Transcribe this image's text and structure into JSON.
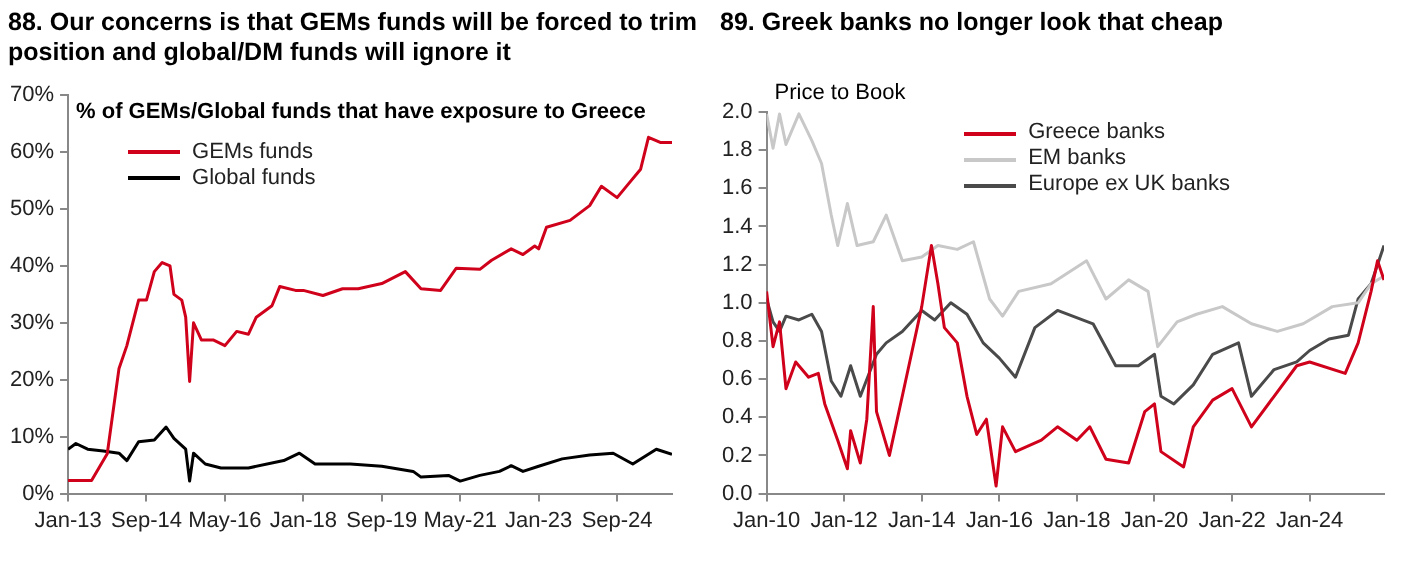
{
  "chart_data": [
    {
      "type": "line",
      "title": "88.  Our concerns is that GEMs funds will be forced to trim position and global/DM funds will ignore it",
      "subtitle": "% of GEMs/Global funds that have exposure to Greece",
      "legend": "top left",
      "grid": false,
      "marker": "none",
      "line_style": "solid",
      "xlim": [
        "2013-01",
        "2025-11"
      ],
      "xticks": [
        {
          "value": "2013-01",
          "label": "Jan-13"
        },
        {
          "value": "2014-09",
          "label": "Sep-14"
        },
        {
          "value": "2016-05",
          "label": "May-16"
        },
        {
          "value": "2018-01",
          "label": "Jan-18"
        },
        {
          "value": "2019-09",
          "label": "Sep-19"
        },
        {
          "value": "2021-05",
          "label": "May-21"
        },
        {
          "value": "2023-01",
          "label": "Jan-23"
        },
        {
          "value": "2024-09",
          "label": "Sep-24"
        }
      ],
      "ylim": [
        0,
        70
      ],
      "yticks": [
        {
          "value": 0,
          "label": "0%"
        },
        {
          "value": 10,
          "label": "10%"
        },
        {
          "value": 20,
          "label": "20%"
        },
        {
          "value": 30,
          "label": "30%"
        },
        {
          "value": 40,
          "label": "40%"
        },
        {
          "value": 50,
          "label": "50%"
        },
        {
          "value": 60,
          "label": "60%"
        },
        {
          "value": 70,
          "label": "70%"
        }
      ],
      "series": [
        {
          "name": "GEMs funds",
          "color": "#d0021b",
          "x": [
            "2013-01",
            "2013-07",
            "2013-11",
            "2014-02",
            "2014-04",
            "2014-07",
            "2014-09",
            "2014-11",
            "2015-01",
            "2015-03",
            "2015-04",
            "2015-06",
            "2015-07",
            "2015-08",
            "2015-09",
            "2015-11",
            "2016-02",
            "2016-05",
            "2016-08",
            "2016-11",
            "2017-01",
            "2017-05",
            "2017-07",
            "2017-11",
            "2018-01",
            "2018-06",
            "2018-11",
            "2019-03",
            "2019-09",
            "2020-03",
            "2020-07",
            "2020-12",
            "2021-04",
            "2021-10",
            "2022-01",
            "2022-06",
            "2022-09",
            "2022-12",
            "2023-01",
            "2023-03",
            "2023-09",
            "2024-02",
            "2024-05",
            "2024-09",
            "2024-12",
            "2025-03",
            "2025-05",
            "2025-08",
            "2025-11"
          ],
          "values": [
            2.3,
            2.3,
            7,
            22,
            26,
            34,
            34,
            39,
            40.6,
            40,
            35,
            34,
            31,
            19.7,
            30,
            27,
            27,
            26,
            28.5,
            28,
            31,
            33,
            36.4,
            35.7,
            35.7,
            34.8,
            36,
            36,
            36.9,
            39,
            36,
            35.7,
            39.6,
            39.4,
            41,
            43,
            42,
            43.5,
            43,
            46.8,
            48,
            50.6,
            54,
            52,
            54.5,
            57,
            62.6,
            61.7,
            61.7
          ]
        },
        {
          "name": "Global funds",
          "color": "#000000",
          "x": [
            "2013-01",
            "2013-03",
            "2013-06",
            "2013-10",
            "2014-02",
            "2014-04",
            "2014-07",
            "2014-11",
            "2015-02",
            "2015-04",
            "2015-07",
            "2015-08",
            "2015-09",
            "2015-12",
            "2016-04",
            "2016-11",
            "2017-08",
            "2017-12",
            "2018-04",
            "2019-01",
            "2019-09",
            "2020-05",
            "2020-07",
            "2021-02",
            "2021-05",
            "2021-10",
            "2022-03",
            "2022-06",
            "2022-09",
            "2023-01",
            "2023-07",
            "2024-02",
            "2024-08",
            "2025-01",
            "2025-07",
            "2025-11"
          ],
          "values": [
            7.8,
            8.8,
            7.8,
            7.5,
            7.1,
            5.8,
            9.1,
            9.4,
            11.7,
            9.7,
            7.8,
            2.2,
            7.1,
            5.2,
            4.5,
            4.5,
            5.8,
            7.1,
            5.2,
            5.2,
            4.8,
            3.9,
            2.9,
            3.2,
            2.2,
            3.2,
            3.9,
            4.9,
            3.9,
            4.8,
            6.1,
            6.8,
            7.1,
            5.2,
            7.8,
            6.9
          ]
        }
      ]
    },
    {
      "type": "line",
      "title": "89.  Greek banks no longer look that cheap",
      "ylabel": "Price to Book",
      "legend": "top",
      "grid": false,
      "marker": "none",
      "line_style": "solid",
      "xlim": [
        "2010-01",
        "2025-12"
      ],
      "xticks": [
        {
          "value": "2010-01",
          "label": "Jan-10"
        },
        {
          "value": "2012-01",
          "label": "Jan-12"
        },
        {
          "value": "2014-01",
          "label": "Jan-14"
        },
        {
          "value": "2016-01",
          "label": "Jan-16"
        },
        {
          "value": "2018-01",
          "label": "Jan-18"
        },
        {
          "value": "2020-01",
          "label": "Jan-20"
        },
        {
          "value": "2022-01",
          "label": "Jan-22"
        },
        {
          "value": "2024-01",
          "label": "Jan-24"
        }
      ],
      "ylim": [
        0,
        2
      ],
      "yticks": [
        {
          "value": 0,
          "label": "0.0"
        },
        {
          "value": 0.2,
          "label": "0.2"
        },
        {
          "value": 0.4,
          "label": "0.4"
        },
        {
          "value": 0.6,
          "label": "0.6"
        },
        {
          "value": 0.8,
          "label": "0.8"
        },
        {
          "value": 1,
          "label": "1.0"
        },
        {
          "value": 1.2,
          "label": "1.2"
        },
        {
          "value": 1.4,
          "label": "1.4"
        },
        {
          "value": 1.6,
          "label": "1.6"
        },
        {
          "value": 1.8,
          "label": "1.8"
        },
        {
          "value": 2,
          "label": "2.0"
        }
      ],
      "series": [
        {
          "name": "Greece banks",
          "color": "#d0021b",
          "x": [
            "2010-01",
            "2010-03",
            "2010-05",
            "2010-07",
            "2010-10",
            "2011-02",
            "2011-05",
            "2011-07",
            "2011-11",
            "2012-02",
            "2012-03",
            "2012-06",
            "2012-08",
            "2012-10",
            "2012-11",
            "2013-03",
            "2013-08",
            "2014-01",
            "2014-04",
            "2014-06",
            "2014-08",
            "2014-12",
            "2015-03",
            "2015-06",
            "2015-09",
            "2015-12",
            "2016-02",
            "2016-06",
            "2017-02",
            "2017-07",
            "2018-01",
            "2018-05",
            "2018-10",
            "2019-05",
            "2019-10",
            "2020-01",
            "2020-03",
            "2020-10",
            "2021-01",
            "2021-07",
            "2022-01",
            "2022-07",
            "2023-02",
            "2023-09",
            "2024-01",
            "2024-12",
            "2025-04",
            "2025-08",
            "2025-10",
            "2025-12"
          ],
          "values": [
            1.06,
            0.77,
            0.9,
            0.55,
            0.69,
            0.61,
            0.63,
            0.47,
            0.28,
            0.13,
            0.33,
            0.16,
            0.39,
            0.98,
            0.43,
            0.2,
            0.59,
            0.98,
            1.3,
            1.1,
            0.87,
            0.79,
            0.51,
            0.31,
            0.39,
            0.04,
            0.35,
            0.22,
            0.28,
            0.35,
            0.28,
            0.35,
            0.18,
            0.16,
            0.43,
            0.47,
            0.22,
            0.14,
            0.35,
            0.49,
            0.55,
            0.35,
            0.51,
            0.67,
            0.69,
            0.63,
            0.79,
            1.06,
            1.22,
            1.12
          ]
        },
        {
          "name": "EM banks",
          "color": "#c8c8c8",
          "x": [
            "2010-01",
            "2010-03",
            "2010-05",
            "2010-07",
            "2010-11",
            "2011-03",
            "2011-06",
            "2011-09",
            "2011-11",
            "2012-02",
            "2012-05",
            "2012-10",
            "2013-02",
            "2013-07",
            "2014-01",
            "2014-06",
            "2014-12",
            "2015-05",
            "2015-10",
            "2016-02",
            "2016-07",
            "2017-05",
            "2018-04",
            "2018-10",
            "2019-05",
            "2019-11",
            "2020-02",
            "2020-08",
            "2021-02",
            "2021-10",
            "2022-07",
            "2023-03",
            "2023-11",
            "2024-08",
            "2025-04",
            "2025-08",
            "2025-12"
          ],
          "values": [
            1.99,
            1.81,
            1.99,
            1.83,
            1.99,
            1.85,
            1.73,
            1.46,
            1.3,
            1.52,
            1.3,
            1.32,
            1.46,
            1.22,
            1.24,
            1.3,
            1.28,
            1.32,
            1.02,
            0.93,
            1.06,
            1.1,
            1.22,
            1.02,
            1.12,
            1.06,
            0.77,
            0.9,
            0.94,
            0.98,
            0.89,
            0.85,
            0.89,
            0.98,
            1,
            1.1,
            1.14
          ]
        },
        {
          "name": "Europe ex UK banks",
          "color": "#4a4a4a",
          "x": [
            "2010-01",
            "2010-03",
            "2010-05",
            "2010-07",
            "2010-11",
            "2011-03",
            "2011-06",
            "2011-09",
            "2011-12",
            "2012-03",
            "2012-06",
            "2012-11",
            "2013-02",
            "2013-07",
            "2014-01",
            "2014-05",
            "2014-10",
            "2015-03",
            "2015-08",
            "2016-01",
            "2016-06",
            "2016-12",
            "2017-07",
            "2018-06",
            "2019-01",
            "2019-08",
            "2020-01",
            "2020-03",
            "2020-07",
            "2021-01",
            "2021-07",
            "2022-03",
            "2022-07",
            "2023-02",
            "2023-09",
            "2024-01",
            "2024-07",
            "2025-01",
            "2025-04",
            "2025-08",
            "2025-12"
          ],
          "values": [
            1.02,
            0.9,
            0.85,
            0.93,
            0.91,
            0.94,
            0.85,
            0.59,
            0.51,
            0.67,
            0.51,
            0.73,
            0.79,
            0.85,
            0.96,
            0.91,
            1,
            0.94,
            0.79,
            0.71,
            0.61,
            0.87,
            0.96,
            0.89,
            0.67,
            0.67,
            0.73,
            0.51,
            0.47,
            0.57,
            0.73,
            0.79,
            0.51,
            0.65,
            0.69,
            0.75,
            0.81,
            0.83,
            1.02,
            1.1,
            1.3
          ]
        }
      ]
    }
  ]
}
